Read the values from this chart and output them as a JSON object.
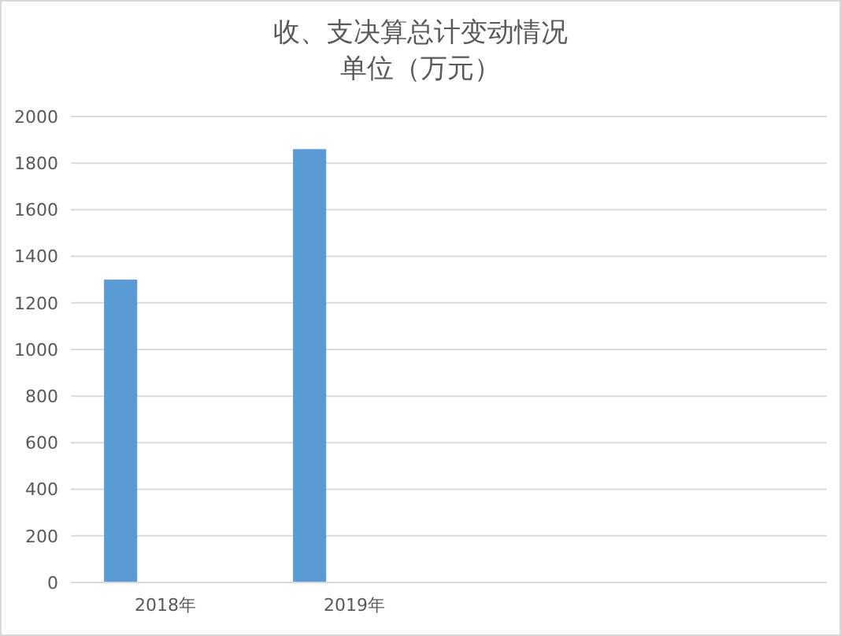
{
  "chart_data": {
    "type": "bar",
    "title": "收、支决算总计变动情况",
    "subtitle": "单位（万元）",
    "categories": [
      "2018年",
      "2019年",
      null,
      null
    ],
    "series": [
      {
        "color": "#5b9bd5",
        "values": [
          1300,
          1860,
          null,
          null
        ]
      }
    ],
    "ylim": [
      0,
      2000
    ],
    "yticks": [
      0,
      200,
      400,
      600,
      800,
      1000,
      1200,
      1400,
      1600,
      1800,
      2000
    ],
    "grid": "y"
  }
}
